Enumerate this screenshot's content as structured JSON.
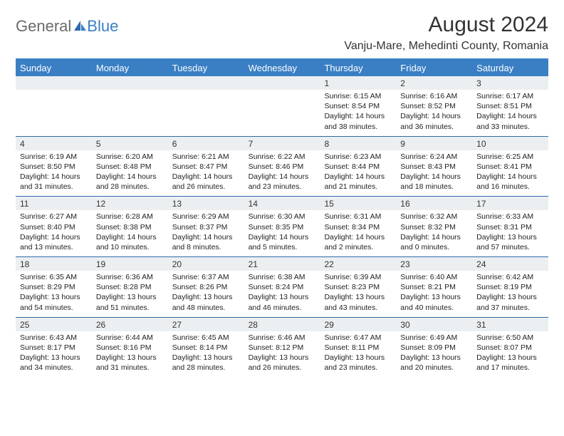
{
  "logo": {
    "part1": "General",
    "part2": "Blue"
  },
  "header": {
    "month_title": "August 2024",
    "location": "Vanju-Mare, Mehedinti County, Romania"
  },
  "colors": {
    "brand_blue": "#3a7fc4",
    "header_bar": "#3a7fc4",
    "num_row_bg": "#eceff1",
    "row_divider": "#2e6aa8"
  },
  "day_headers": [
    "Sunday",
    "Monday",
    "Tuesday",
    "Wednesday",
    "Thursday",
    "Friday",
    "Saturday"
  ],
  "weeks": [
    {
      "nums": [
        "",
        "",
        "",
        "",
        "1",
        "2",
        "3"
      ],
      "cells": [
        {},
        {},
        {},
        {},
        {
          "sunrise": "Sunrise: 6:15 AM",
          "sunset": "Sunset: 8:54 PM",
          "day1": "Daylight: 14 hours",
          "day2": "and 38 minutes."
        },
        {
          "sunrise": "Sunrise: 6:16 AM",
          "sunset": "Sunset: 8:52 PM",
          "day1": "Daylight: 14 hours",
          "day2": "and 36 minutes."
        },
        {
          "sunrise": "Sunrise: 6:17 AM",
          "sunset": "Sunset: 8:51 PM",
          "day1": "Daylight: 14 hours",
          "day2": "and 33 minutes."
        }
      ]
    },
    {
      "nums": [
        "4",
        "5",
        "6",
        "7",
        "8",
        "9",
        "10"
      ],
      "cells": [
        {
          "sunrise": "Sunrise: 6:19 AM",
          "sunset": "Sunset: 8:50 PM",
          "day1": "Daylight: 14 hours",
          "day2": "and 31 minutes."
        },
        {
          "sunrise": "Sunrise: 6:20 AM",
          "sunset": "Sunset: 8:48 PM",
          "day1": "Daylight: 14 hours",
          "day2": "and 28 minutes."
        },
        {
          "sunrise": "Sunrise: 6:21 AM",
          "sunset": "Sunset: 8:47 PM",
          "day1": "Daylight: 14 hours",
          "day2": "and 26 minutes."
        },
        {
          "sunrise": "Sunrise: 6:22 AM",
          "sunset": "Sunset: 8:46 PM",
          "day1": "Daylight: 14 hours",
          "day2": "and 23 minutes."
        },
        {
          "sunrise": "Sunrise: 6:23 AM",
          "sunset": "Sunset: 8:44 PM",
          "day1": "Daylight: 14 hours",
          "day2": "and 21 minutes."
        },
        {
          "sunrise": "Sunrise: 6:24 AM",
          "sunset": "Sunset: 8:43 PM",
          "day1": "Daylight: 14 hours",
          "day2": "and 18 minutes."
        },
        {
          "sunrise": "Sunrise: 6:25 AM",
          "sunset": "Sunset: 8:41 PM",
          "day1": "Daylight: 14 hours",
          "day2": "and 16 minutes."
        }
      ]
    },
    {
      "nums": [
        "11",
        "12",
        "13",
        "14",
        "15",
        "16",
        "17"
      ],
      "cells": [
        {
          "sunrise": "Sunrise: 6:27 AM",
          "sunset": "Sunset: 8:40 PM",
          "day1": "Daylight: 14 hours",
          "day2": "and 13 minutes."
        },
        {
          "sunrise": "Sunrise: 6:28 AM",
          "sunset": "Sunset: 8:38 PM",
          "day1": "Daylight: 14 hours",
          "day2": "and 10 minutes."
        },
        {
          "sunrise": "Sunrise: 6:29 AM",
          "sunset": "Sunset: 8:37 PM",
          "day1": "Daylight: 14 hours",
          "day2": "and 8 minutes."
        },
        {
          "sunrise": "Sunrise: 6:30 AM",
          "sunset": "Sunset: 8:35 PM",
          "day1": "Daylight: 14 hours",
          "day2": "and 5 minutes."
        },
        {
          "sunrise": "Sunrise: 6:31 AM",
          "sunset": "Sunset: 8:34 PM",
          "day1": "Daylight: 14 hours",
          "day2": "and 2 minutes."
        },
        {
          "sunrise": "Sunrise: 6:32 AM",
          "sunset": "Sunset: 8:32 PM",
          "day1": "Daylight: 14 hours",
          "day2": "and 0 minutes."
        },
        {
          "sunrise": "Sunrise: 6:33 AM",
          "sunset": "Sunset: 8:31 PM",
          "day1": "Daylight: 13 hours",
          "day2": "and 57 minutes."
        }
      ]
    },
    {
      "nums": [
        "18",
        "19",
        "20",
        "21",
        "22",
        "23",
        "24"
      ],
      "cells": [
        {
          "sunrise": "Sunrise: 6:35 AM",
          "sunset": "Sunset: 8:29 PM",
          "day1": "Daylight: 13 hours",
          "day2": "and 54 minutes."
        },
        {
          "sunrise": "Sunrise: 6:36 AM",
          "sunset": "Sunset: 8:28 PM",
          "day1": "Daylight: 13 hours",
          "day2": "and 51 minutes."
        },
        {
          "sunrise": "Sunrise: 6:37 AM",
          "sunset": "Sunset: 8:26 PM",
          "day1": "Daylight: 13 hours",
          "day2": "and 48 minutes."
        },
        {
          "sunrise": "Sunrise: 6:38 AM",
          "sunset": "Sunset: 8:24 PM",
          "day1": "Daylight: 13 hours",
          "day2": "and 46 minutes."
        },
        {
          "sunrise": "Sunrise: 6:39 AM",
          "sunset": "Sunset: 8:23 PM",
          "day1": "Daylight: 13 hours",
          "day2": "and 43 minutes."
        },
        {
          "sunrise": "Sunrise: 6:40 AM",
          "sunset": "Sunset: 8:21 PM",
          "day1": "Daylight: 13 hours",
          "day2": "and 40 minutes."
        },
        {
          "sunrise": "Sunrise: 6:42 AM",
          "sunset": "Sunset: 8:19 PM",
          "day1": "Daylight: 13 hours",
          "day2": "and 37 minutes."
        }
      ]
    },
    {
      "nums": [
        "25",
        "26",
        "27",
        "28",
        "29",
        "30",
        "31"
      ],
      "cells": [
        {
          "sunrise": "Sunrise: 6:43 AM",
          "sunset": "Sunset: 8:17 PM",
          "day1": "Daylight: 13 hours",
          "day2": "and 34 minutes."
        },
        {
          "sunrise": "Sunrise: 6:44 AM",
          "sunset": "Sunset: 8:16 PM",
          "day1": "Daylight: 13 hours",
          "day2": "and 31 minutes."
        },
        {
          "sunrise": "Sunrise: 6:45 AM",
          "sunset": "Sunset: 8:14 PM",
          "day1": "Daylight: 13 hours",
          "day2": "and 28 minutes."
        },
        {
          "sunrise": "Sunrise: 6:46 AM",
          "sunset": "Sunset: 8:12 PM",
          "day1": "Daylight: 13 hours",
          "day2": "and 26 minutes."
        },
        {
          "sunrise": "Sunrise: 6:47 AM",
          "sunset": "Sunset: 8:11 PM",
          "day1": "Daylight: 13 hours",
          "day2": "and 23 minutes."
        },
        {
          "sunrise": "Sunrise: 6:49 AM",
          "sunset": "Sunset: 8:09 PM",
          "day1": "Daylight: 13 hours",
          "day2": "and 20 minutes."
        },
        {
          "sunrise": "Sunrise: 6:50 AM",
          "sunset": "Sunset: 8:07 PM",
          "day1": "Daylight: 13 hours",
          "day2": "and 17 minutes."
        }
      ]
    }
  ]
}
